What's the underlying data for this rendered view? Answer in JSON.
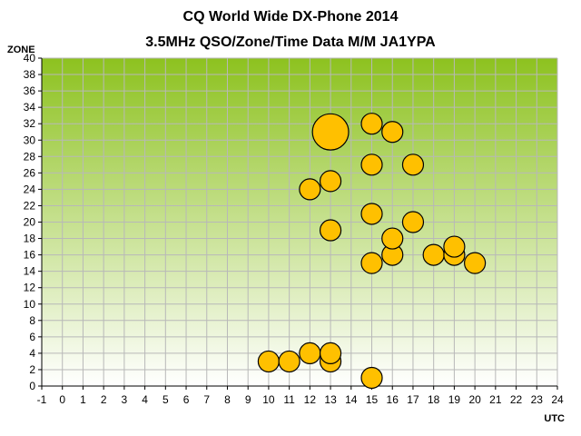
{
  "chart_data": {
    "type": "scatter",
    "title": "CQ World Wide DX-Phone 2014",
    "subtitle": "3.5MHz QSO/Zone/Time Data M/M JA1YPA",
    "xlabel": "UTC",
    "ylabel": "ZONE",
    "xlim": [
      -1,
      24
    ],
    "ylim": [
      0,
      40
    ],
    "x_ticks": [
      -1,
      0,
      1,
      2,
      3,
      4,
      5,
      6,
      7,
      8,
      9,
      10,
      11,
      12,
      13,
      14,
      15,
      16,
      17,
      18,
      19,
      20,
      21,
      22,
      23,
      24
    ],
    "y_ticks": [
      0,
      2,
      4,
      6,
      8,
      10,
      12,
      14,
      16,
      18,
      20,
      22,
      24,
      26,
      28,
      30,
      32,
      34,
      36,
      38,
      40
    ],
    "grid": true,
    "legend": "none",
    "bubble_color": "#FFC000",
    "bubble_edge": "#000000",
    "plot_gradient_top": "#8DC21F",
    "plot_gradient_bottom": "#FFFFFF",
    "points": [
      {
        "x": 10,
        "y": 3,
        "size": 1
      },
      {
        "x": 11,
        "y": 3,
        "size": 1
      },
      {
        "x": 12,
        "y": 4,
        "size": 1
      },
      {
        "x": 12,
        "y": 24,
        "size": 1
      },
      {
        "x": 13,
        "y": 3,
        "size": 1
      },
      {
        "x": 13,
        "y": 4,
        "size": 1
      },
      {
        "x": 13,
        "y": 19,
        "size": 1
      },
      {
        "x": 13,
        "y": 25,
        "size": 1
      },
      {
        "x": 13,
        "y": 31,
        "size": 3
      },
      {
        "x": 15,
        "y": 1,
        "size": 1
      },
      {
        "x": 15,
        "y": 15,
        "size": 1
      },
      {
        "x": 15,
        "y": 21,
        "size": 1
      },
      {
        "x": 15,
        "y": 27,
        "size": 1
      },
      {
        "x": 15,
        "y": 32,
        "size": 1
      },
      {
        "x": 16,
        "y": 16,
        "size": 1
      },
      {
        "x": 16,
        "y": 18,
        "size": 1
      },
      {
        "x": 16,
        "y": 31,
        "size": 1
      },
      {
        "x": 17,
        "y": 20,
        "size": 1
      },
      {
        "x": 17,
        "y": 27,
        "size": 1
      },
      {
        "x": 18,
        "y": 16,
        "size": 1
      },
      {
        "x": 19,
        "y": 16,
        "size": 1
      },
      {
        "x": 19,
        "y": 17,
        "size": 1
      },
      {
        "x": 20,
        "y": 15,
        "size": 1
      }
    ]
  }
}
